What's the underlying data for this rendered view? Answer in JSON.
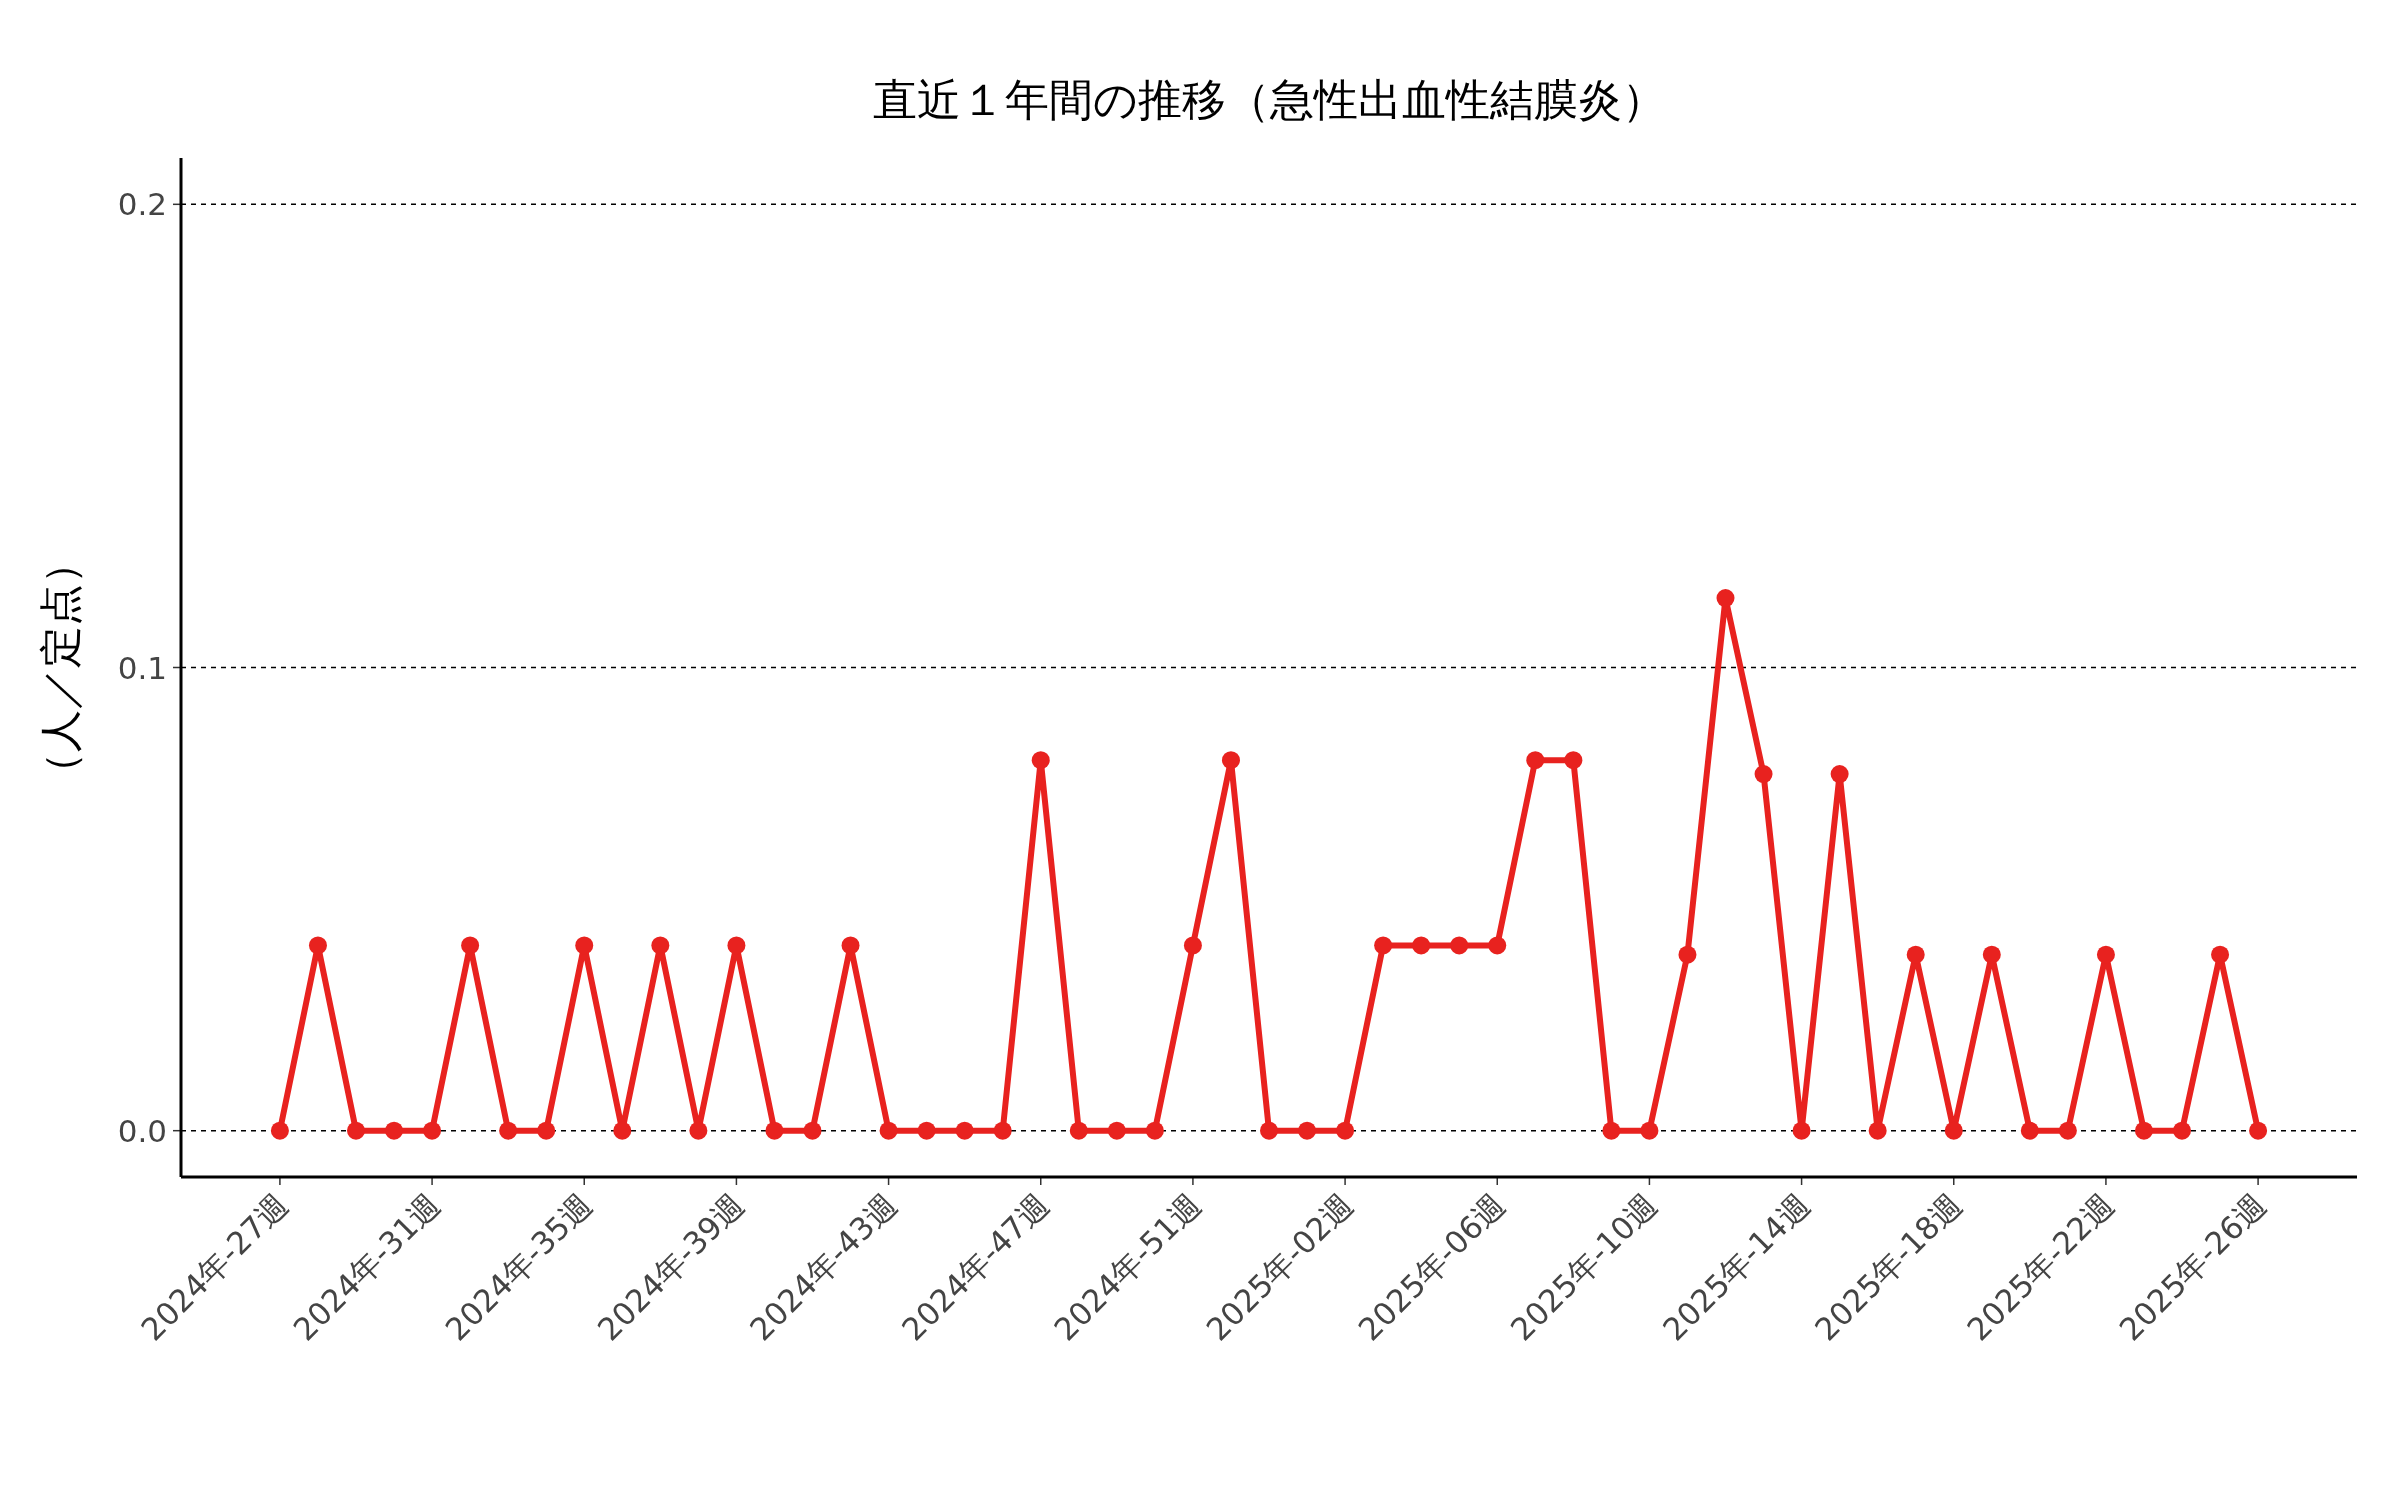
{
  "chart_data": {
    "type": "line",
    "title": "直近１年間の推移（急性出血性結膜炎）",
    "ylabel": "（人／定点）",
    "categories": [
      "2024年-27週",
      null,
      null,
      null,
      "2024年-31週",
      null,
      null,
      null,
      "2024年-35週",
      null,
      null,
      null,
      "2024年-39週",
      null,
      null,
      null,
      "2024年-43週",
      null,
      null,
      null,
      "2024年-47週",
      null,
      null,
      null,
      "2024年-51週",
      null,
      null,
      null,
      "2025年-02週",
      null,
      null,
      null,
      "2025年-06週",
      null,
      null,
      null,
      "2025年-10週",
      null,
      null,
      null,
      "2025年-14週",
      null,
      null,
      null,
      "2025年-18週",
      null,
      null,
      null,
      "2025年-22週",
      null,
      null,
      null,
      "2025年-26週"
    ],
    "series": [
      {
        "color": "#e8221f",
        "values": [
          0,
          0.04,
          0,
          0,
          0,
          0.04,
          0,
          0,
          0.04,
          0,
          0.04,
          0,
          0.04,
          0,
          0,
          0.04,
          0,
          0,
          0,
          0,
          0.08,
          0,
          0,
          0,
          0.04,
          0.08,
          0,
          0,
          0,
          0.04,
          0.04,
          0.04,
          0.04,
          0.08,
          0.08,
          0,
          0,
          0.038,
          0.115,
          0.077,
          0,
          0.077,
          0,
          0.038,
          0,
          0.038,
          0,
          0,
          0.038,
          0,
          0,
          0.038,
          0
        ]
      }
    ],
    "ylim": [
      -0.01,
      0.21
    ],
    "yticks": [
      {
        "value": 0,
        "label": "0.0"
      },
      {
        "value": 0.1,
        "label": "0.1"
      },
      {
        "value": 0.2,
        "label": "0.2"
      }
    ],
    "grid": "y",
    "marker": "circle",
    "line_style": "solid"
  }
}
